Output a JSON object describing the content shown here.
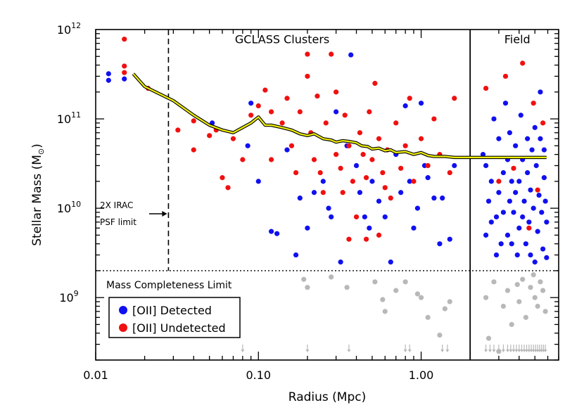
{
  "chart_data": {
    "type": "scatter",
    "xlabel": "Radius (Mpc)",
    "ylabel": "Stellar Mass (M",
    "ylabel_symbol": "⊙",
    "ylabel_close": ")",
    "x_scale": "log",
    "y_scale": "log",
    "xlim": [
      0.01,
      7.0
    ],
    "ylim": [
      200000000.0,
      1000000000000.0
    ],
    "x_ticks": [
      {
        "value": 0.01,
        "label": "0.01"
      },
      {
        "value": 0.1,
        "label": "0.10"
      },
      {
        "value": 1.0,
        "label": "1.00"
      }
    ],
    "y_ticks": [
      {
        "value": 1000000000.0,
        "base": "10",
        "exp": "9"
      },
      {
        "value": 10000000000.0,
        "base": "10",
        "exp": "10"
      },
      {
        "value": 100000000000.0,
        "base": "10",
        "exp": "11"
      },
      {
        "value": 1000000000000.0,
        "base": "10",
        "exp": "12"
      }
    ],
    "grid": false,
    "legend_position": "bottom-left",
    "regions": [
      {
        "label": "GCLASS Clusters",
        "x": 0.14,
        "y": 700000000000.0
      },
      {
        "label": "Field",
        "x": 3.9,
        "y": 700000000000.0
      }
    ],
    "field_boundary": 2.0,
    "psf_limit": {
      "x": 0.028,
      "line1": "2X IRAC",
      "line2": "PSF limit",
      "y1": 10000000000.0,
      "y2": 6500000000.0
    },
    "mass_limit": {
      "y": 2000000000.0,
      "label": "Mass Completeness Limit"
    },
    "colors": {
      "detected": "#1010f0",
      "undetected": "#f01010",
      "below_limit": "#b8b8b8",
      "curve_fill": "#f0f000",
      "curve_edge": "#000000"
    },
    "series": [
      {
        "name": "[OII] Detected",
        "color": "#1010f0",
        "points": [
          [
            0.012,
            320000000000.0
          ],
          [
            0.012,
            270000000000.0
          ],
          [
            0.015,
            280000000000.0
          ],
          [
            0.052,
            90000000000.0
          ],
          [
            0.086,
            50000000000.0
          ],
          [
            0.09,
            150000000000.0
          ],
          [
            0.1,
            20000000000.0
          ],
          [
            0.12,
            5500000000.0
          ],
          [
            0.13,
            5200000000.0
          ],
          [
            0.15,
            45000000000.0
          ],
          [
            0.17,
            3000000000.0
          ],
          [
            0.18,
            13000000000.0
          ],
          [
            0.2,
            6000000000.0
          ],
          [
            0.22,
            15000000000.0
          ],
          [
            0.25,
            20000000000.0
          ],
          [
            0.27,
            10000000000.0
          ],
          [
            0.28,
            8000000000.0
          ],
          [
            0.3,
            120000000000.0
          ],
          [
            0.32,
            2500000000.0
          ],
          [
            0.35,
            50000000000.0
          ],
          [
            0.37,
            520000000000.0
          ],
          [
            0.4,
            30000000000.0
          ],
          [
            0.42,
            15000000000.0
          ],
          [
            0.45,
            8000000000.0
          ],
          [
            0.48,
            6000000000.0
          ],
          [
            0.5,
            20000000000.0
          ],
          [
            0.55,
            12000000000.0
          ],
          [
            0.6,
            8000000000.0
          ],
          [
            0.65,
            2500000000.0
          ],
          [
            0.7,
            40000000000.0
          ],
          [
            0.75,
            15000000000.0
          ],
          [
            0.8,
            140000000000.0
          ],
          [
            0.85,
            20000000000.0
          ],
          [
            0.9,
            6000000000.0
          ],
          [
            0.95,
            10000000000.0
          ],
          [
            1.0,
            150000000000.0
          ],
          [
            1.05,
            30000000000.0
          ],
          [
            1.1,
            22000000000.0
          ],
          [
            1.2,
            13000000000.0
          ],
          [
            1.3,
            4000000000.0
          ],
          [
            1.35,
            13000000000.0
          ],
          [
            1.5,
            4500000000.0
          ],
          [
            1.6,
            30000000000.0
          ],
          [
            2.4,
            40000000000.0
          ],
          [
            2.5,
            30000000000.0
          ],
          [
            2.5,
            5000000000.0
          ],
          [
            2.6,
            12000000000.0
          ],
          [
            2.7,
            7000000000.0
          ],
          [
            2.7,
            20000000000.0
          ],
          [
            2.8,
            100000000000.0
          ],
          [
            2.9,
            8000000000.0
          ],
          [
            2.9,
            3000000000.0
          ],
          [
            3.0,
            60000000000.0
          ],
          [
            3.0,
            15000000000.0
          ],
          [
            3.1,
            4000000000.0
          ],
          [
            3.2,
            9000000000.0
          ],
          [
            3.2,
            25000000000.0
          ],
          [
            3.3,
            150000000000.0
          ],
          [
            3.4,
            5000000000.0
          ],
          [
            3.4,
            35000000000.0
          ],
          [
            3.5,
            12000000000.0
          ],
          [
            3.5,
            70000000000.0
          ],
          [
            3.6,
            20000000000.0
          ],
          [
            3.6,
            4000000000.0
          ],
          [
            3.7,
            9000000000.0
          ],
          [
            3.8,
            50000000000.0
          ],
          [
            3.8,
            15000000000.0
          ],
          [
            3.9,
            3000000000.0
          ],
          [
            4.0,
            6000000000.0
          ],
          [
            4.0,
            20000000000.0
          ],
          [
            4.1,
            110000000000.0
          ],
          [
            4.2,
            8000000000.0
          ],
          [
            4.2,
            35000000000.0
          ],
          [
            4.3,
            12000000000.0
          ],
          [
            4.4,
            4000000000.0
          ],
          [
            4.5,
            60000000000.0
          ],
          [
            4.5,
            25000000000.0
          ],
          [
            4.6,
            7000000000.0
          ],
          [
            4.7,
            16000000000.0
          ],
          [
            4.7,
            3000000000.0
          ],
          [
            4.8,
            45000000000.0
          ],
          [
            4.9,
            10000000000.0
          ],
          [
            5.0,
            2500000000.0
          ],
          [
            5.0,
            80000000000.0
          ],
          [
            5.1,
            30000000000.0
          ],
          [
            5.2,
            5500000000.0
          ],
          [
            5.3,
            14000000000.0
          ],
          [
            5.4,
            200000000000.0
          ],
          [
            5.4,
            60000000000.0
          ],
          [
            5.5,
            9000000000.0
          ],
          [
            5.6,
            3500000000.0
          ],
          [
            5.7,
            22000000000.0
          ],
          [
            5.7,
            45000000000.0
          ],
          [
            5.8,
            12000000000.0
          ],
          [
            5.9,
            2800000000.0
          ],
          [
            5.9,
            7000000000.0
          ]
        ]
      },
      {
        "name": "[OII] Undetected",
        "color": "#f01010",
        "points": [
          [
            0.015,
            780000000000.0
          ],
          [
            0.015,
            390000000000.0
          ],
          [
            0.015,
            330000000000.0
          ],
          [
            0.021,
            220000000000.0
          ],
          [
            0.032,
            75000000000.0
          ],
          [
            0.04,
            95000000000.0
          ],
          [
            0.04,
            45000000000.0
          ],
          [
            0.05,
            65000000000.0
          ],
          [
            0.055,
            75000000000.0
          ],
          [
            0.06,
            22000000000.0
          ],
          [
            0.065,
            17000000000.0
          ],
          [
            0.07,
            60000000000.0
          ],
          [
            0.08,
            35000000000.0
          ],
          [
            0.09,
            110000000000.0
          ],
          [
            0.1,
            140000000000.0
          ],
          [
            0.11,
            210000000000.0
          ],
          [
            0.12,
            120000000000.0
          ],
          [
            0.12,
            35000000000.0
          ],
          [
            0.14,
            90000000000.0
          ],
          [
            0.15,
            170000000000.0
          ],
          [
            0.16,
            50000000000.0
          ],
          [
            0.17,
            25000000000.0
          ],
          [
            0.18,
            120000000000.0
          ],
          [
            0.2,
            300000000000.0
          ],
          [
            0.2,
            530000000000.0
          ],
          [
            0.21,
            70000000000.0
          ],
          [
            0.22,
            35000000000.0
          ],
          [
            0.23,
            180000000000.0
          ],
          [
            0.24,
            25000000000.0
          ],
          [
            0.25,
            15000000000.0
          ],
          [
            0.26,
            90000000000.0
          ],
          [
            0.28,
            530000000000.0
          ],
          [
            0.3,
            40000000000.0
          ],
          [
            0.3,
            200000000000.0
          ],
          [
            0.32,
            28000000000.0
          ],
          [
            0.33,
            15000000000.0
          ],
          [
            0.34,
            110000000000.0
          ],
          [
            0.36,
            50000000000.0
          ],
          [
            0.38,
            20000000000.0
          ],
          [
            0.4,
            8000000000.0
          ],
          [
            0.42,
            70000000000.0
          ],
          [
            0.44,
            40000000000.0
          ],
          [
            0.46,
            22000000000.0
          ],
          [
            0.48,
            120000000000.0
          ],
          [
            0.5,
            35000000000.0
          ],
          [
            0.52,
            250000000000.0
          ],
          [
            0.55,
            60000000000.0
          ],
          [
            0.58,
            25000000000.0
          ],
          [
            0.6,
            17000000000.0
          ],
          [
            0.62,
            45000000000.0
          ],
          [
            0.65,
            13000000000.0
          ],
          [
            0.7,
            90000000000.0
          ],
          [
            0.75,
            28000000000.0
          ],
          [
            0.8,
            50000000000.0
          ],
          [
            0.85,
            170000000000.0
          ],
          [
            0.9,
            20000000000.0
          ],
          [
            1.0,
            60000000000.0
          ],
          [
            1.1,
            30000000000.0
          ],
          [
            1.2,
            100000000000.0
          ],
          [
            1.3,
            40000000000.0
          ],
          [
            1.5,
            25000000000.0
          ],
          [
            1.6,
            170000000000.0
          ],
          [
            0.36,
            4500000000.0
          ],
          [
            0.46,
            4500000000.0
          ],
          [
            0.55,
            5000000000.0
          ],
          [
            2.5,
            220000000000.0
          ],
          [
            3.0,
            20000000000.0
          ],
          [
            3.3,
            300000000000.0
          ],
          [
            3.7,
            28000000000.0
          ],
          [
            4.2,
            420000000000.0
          ],
          [
            4.6,
            6000000000.0
          ],
          [
            4.9,
            150000000000.0
          ],
          [
            5.2,
            16000000000.0
          ],
          [
            5.6,
            90000000000.0
          ]
        ]
      },
      {
        "name": "below completeness",
        "color": "#b8b8b8",
        "points": [
          [
            0.19,
            1600000000.0
          ],
          [
            0.2,
            1300000000.0
          ],
          [
            0.28,
            1700000000.0
          ],
          [
            0.35,
            1300000000.0
          ],
          [
            0.52,
            1500000000.0
          ],
          [
            0.58,
            950000000.0
          ],
          [
            0.6,
            700000000.0
          ],
          [
            0.7,
            1200000000.0
          ],
          [
            0.8,
            1500000000.0
          ],
          [
            0.95,
            1100000000.0
          ],
          [
            1.0,
            1000000000.0
          ],
          [
            1.1,
            600000000.0
          ],
          [
            1.3,
            380000000.0
          ],
          [
            1.4,
            750000000.0
          ],
          [
            1.5,
            900000000.0
          ],
          [
            2.5,
            1000000000.0
          ],
          [
            2.6,
            350000000.0
          ],
          [
            2.8,
            1500000000.0
          ],
          [
            3.0,
            250000000.0
          ],
          [
            3.2,
            800000000.0
          ],
          [
            3.4,
            1200000000.0
          ],
          [
            3.6,
            500000000.0
          ],
          [
            3.9,
            1400000000.0
          ],
          [
            4.0,
            900000000.0
          ],
          [
            4.2,
            1600000000.0
          ],
          [
            4.4,
            600000000.0
          ],
          [
            4.7,
            1300000000.0
          ],
          [
            4.9,
            1800000000.0
          ],
          [
            5.0,
            1000000000.0
          ],
          [
            5.2,
            800000000.0
          ],
          [
            5.4,
            1500000000.0
          ],
          [
            5.6,
            1200000000.0
          ],
          [
            5.8,
            700000000.0
          ]
        ]
      }
    ],
    "upper_limit_arrows_x": [
      0.08,
      0.2,
      0.36,
      0.8,
      0.85,
      1.35,
      1.45,
      2.5,
      2.65,
      2.8,
      3.0,
      3.2,
      3.4,
      3.55,
      3.7,
      3.85,
      4.0,
      4.15,
      4.3,
      4.45,
      4.6,
      4.75,
      4.9,
      5.05,
      5.2,
      5.35,
      5.5,
      5.65,
      5.8
    ],
    "mass_completeness_curve": [
      [
        0.017,
        320000000000.0
      ],
      [
        0.02,
        230000000000.0
      ],
      [
        0.03,
        160000000000.0
      ],
      [
        0.04,
        110000000000.0
      ],
      [
        0.05,
        85000000000.0
      ],
      [
        0.06,
        75000000000.0
      ],
      [
        0.07,
        70000000000.0
      ],
      [
        0.08,
        80000000000.0
      ],
      [
        0.09,
        90000000000.0
      ],
      [
        0.1,
        105000000000.0
      ],
      [
        0.11,
        85000000000.0
      ],
      [
        0.12,
        85000000000.0
      ],
      [
        0.14,
        80000000000.0
      ],
      [
        0.16,
        75000000000.0
      ],
      [
        0.18,
        68000000000.0
      ],
      [
        0.2,
        65000000000.0
      ],
      [
        0.22,
        68000000000.0
      ],
      [
        0.25,
        60000000000.0
      ],
      [
        0.28,
        58000000000.0
      ],
      [
        0.3,
        55000000000.0
      ],
      [
        0.33,
        57000000000.0
      ],
      [
        0.36,
        56000000000.0
      ],
      [
        0.4,
        54000000000.0
      ],
      [
        0.43,
        50000000000.0
      ],
      [
        0.47,
        49000000000.0
      ],
      [
        0.5,
        46000000000.0
      ],
      [
        0.55,
        47000000000.0
      ],
      [
        0.6,
        44000000000.0
      ],
      [
        0.65,
        45000000000.0
      ],
      [
        0.7,
        42000000000.0
      ],
      [
        0.8,
        43000000000.0
      ],
      [
        0.9,
        40000000000.0
      ],
      [
        1.0,
        42000000000.0
      ],
      [
        1.1,
        39000000000.0
      ],
      [
        1.2,
        38000000000.0
      ],
      [
        1.4,
        38000000000.0
      ],
      [
        1.6,
        37000000000.0
      ],
      [
        2.0,
        37000000000.0
      ],
      [
        3.0,
        37000000000.0
      ],
      [
        4.0,
        37000000000.0
      ],
      [
        5.0,
        37000000000.0
      ],
      [
        5.9,
        37000000000.0
      ]
    ]
  }
}
